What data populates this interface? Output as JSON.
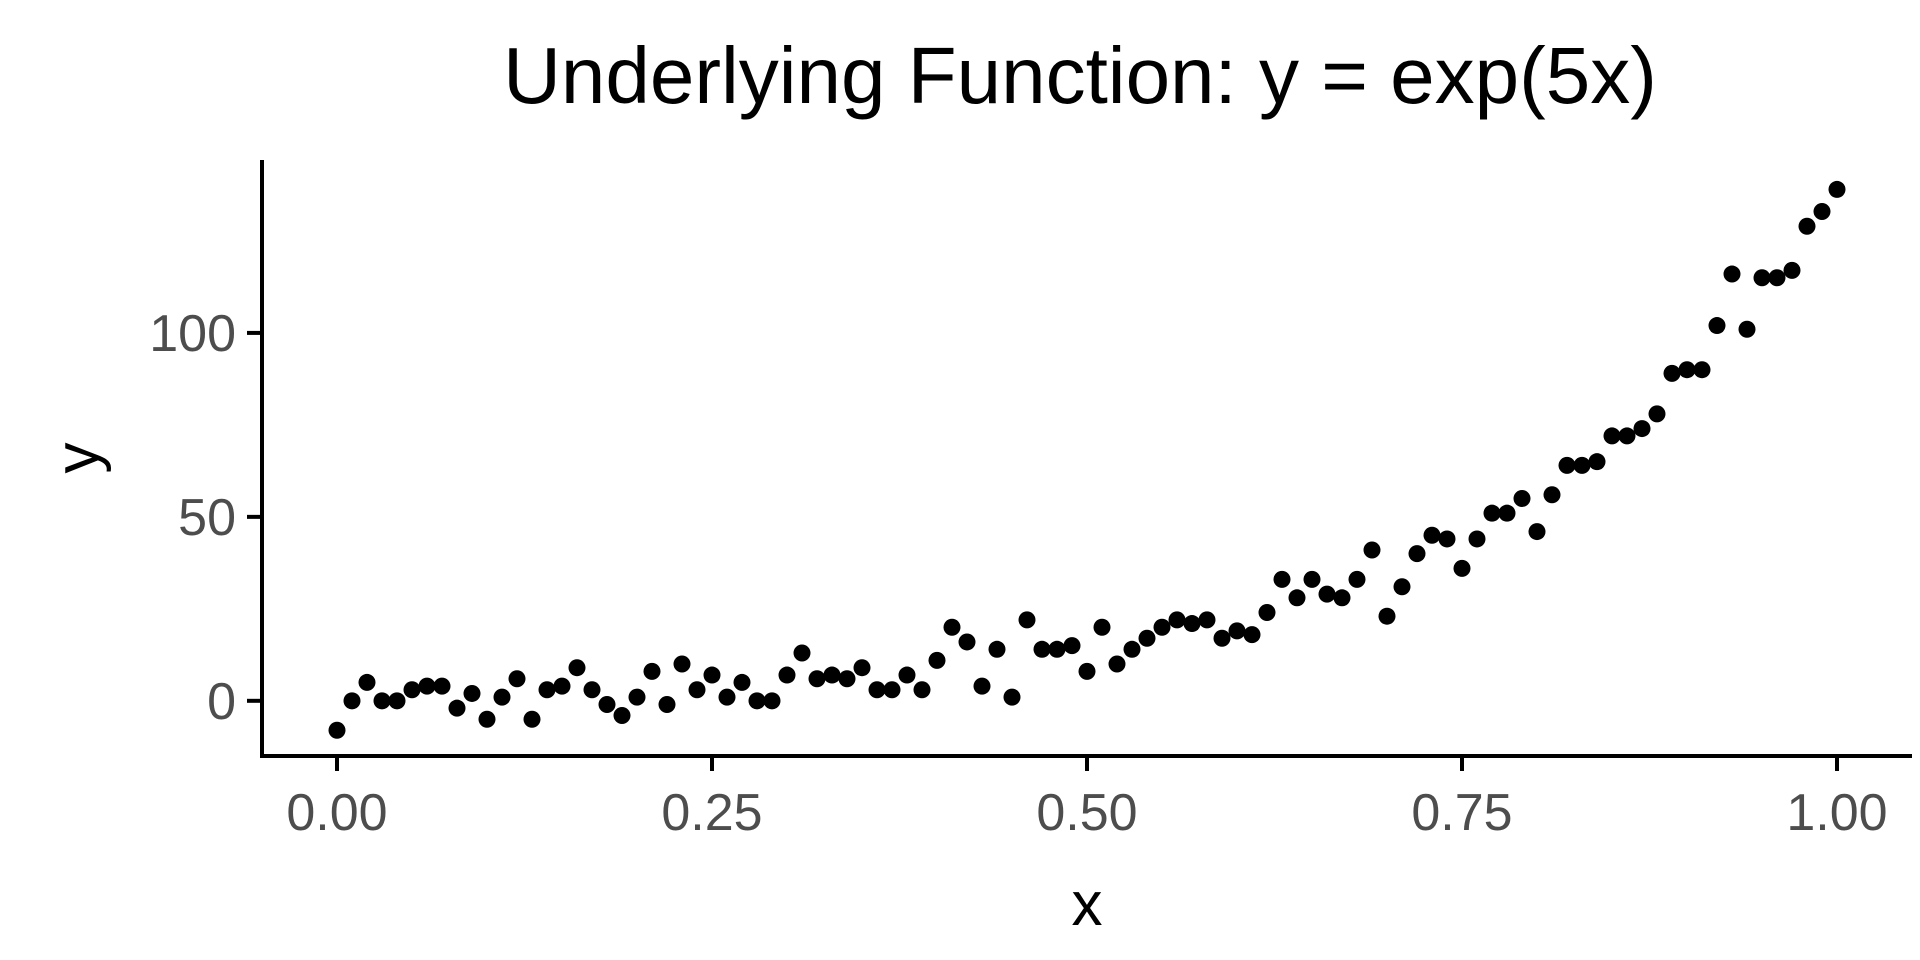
{
  "chart_data": {
    "type": "scatter",
    "title": "Underlying Function: y = exp(5x)",
    "xlabel": "x",
    "ylabel": "y",
    "xlim": [
      -0.05,
      1.05
    ],
    "ylim": [
      -15,
      147
    ],
    "xticks": [
      0,
      0.25,
      0.5,
      0.75,
      1.0
    ],
    "xtick_labels": [
      "0.00",
      "0.25",
      "0.50",
      "0.75",
      "1.00"
    ],
    "yticks": [
      0,
      50,
      100
    ],
    "ytick_labels": [
      "0",
      "50",
      "100"
    ],
    "grid": false,
    "legend": "none",
    "point_color": "#000000",
    "x": [
      0.0,
      0.01,
      0.02,
      0.03,
      0.04,
      0.05,
      0.06,
      0.07,
      0.08,
      0.09,
      0.1,
      0.11,
      0.12,
      0.13,
      0.14,
      0.15,
      0.16,
      0.17,
      0.18,
      0.19,
      0.2,
      0.21,
      0.22,
      0.23,
      0.24,
      0.25,
      0.26,
      0.27,
      0.28,
      0.29,
      0.3,
      0.31,
      0.32,
      0.33,
      0.34,
      0.35,
      0.36,
      0.37,
      0.38,
      0.39,
      0.4,
      0.41,
      0.42,
      0.43,
      0.44,
      0.45,
      0.46,
      0.47,
      0.48,
      0.49,
      0.5,
      0.51,
      0.52,
      0.53,
      0.54,
      0.55,
      0.56,
      0.57,
      0.58,
      0.59,
      0.6,
      0.61,
      0.62,
      0.63,
      0.64,
      0.65,
      0.66,
      0.67,
      0.68,
      0.69,
      0.7,
      0.71,
      0.72,
      0.73,
      0.74,
      0.75,
      0.76,
      0.77,
      0.78,
      0.79,
      0.8,
      0.81,
      0.82,
      0.83,
      0.84,
      0.85,
      0.86,
      0.87,
      0.88,
      0.89,
      0.9,
      0.91,
      0.92,
      0.93,
      0.94,
      0.95,
      0.96,
      0.97,
      0.98,
      0.99,
      1.0
    ],
    "y": [
      -8,
      0,
      5,
      0,
      0,
      3,
      4,
      4,
      -2,
      2,
      -5,
      1,
      6,
      -5,
      3,
      4,
      9,
      3,
      -1,
      -4,
      1,
      8,
      -1,
      10,
      3,
      7,
      1,
      5,
      0,
      0,
      7,
      13,
      6,
      7,
      6,
      9,
      3,
      3,
      7,
      3,
      11,
      20,
      16,
      4,
      14,
      1,
      22,
      14,
      14,
      15,
      8,
      20,
      10,
      14,
      17,
      20,
      22,
      21,
      22,
      17,
      19,
      18,
      24,
      33,
      28,
      33,
      29,
      28,
      33,
      41,
      23,
      31,
      40,
      45,
      44,
      36,
      44,
      51,
      51,
      55,
      46,
      56,
      64,
      64,
      65,
      72,
      72,
      74,
      78,
      89,
      90,
      90,
      102,
      116,
      101,
      115,
      115,
      117,
      129,
      133,
      139
    ]
  }
}
